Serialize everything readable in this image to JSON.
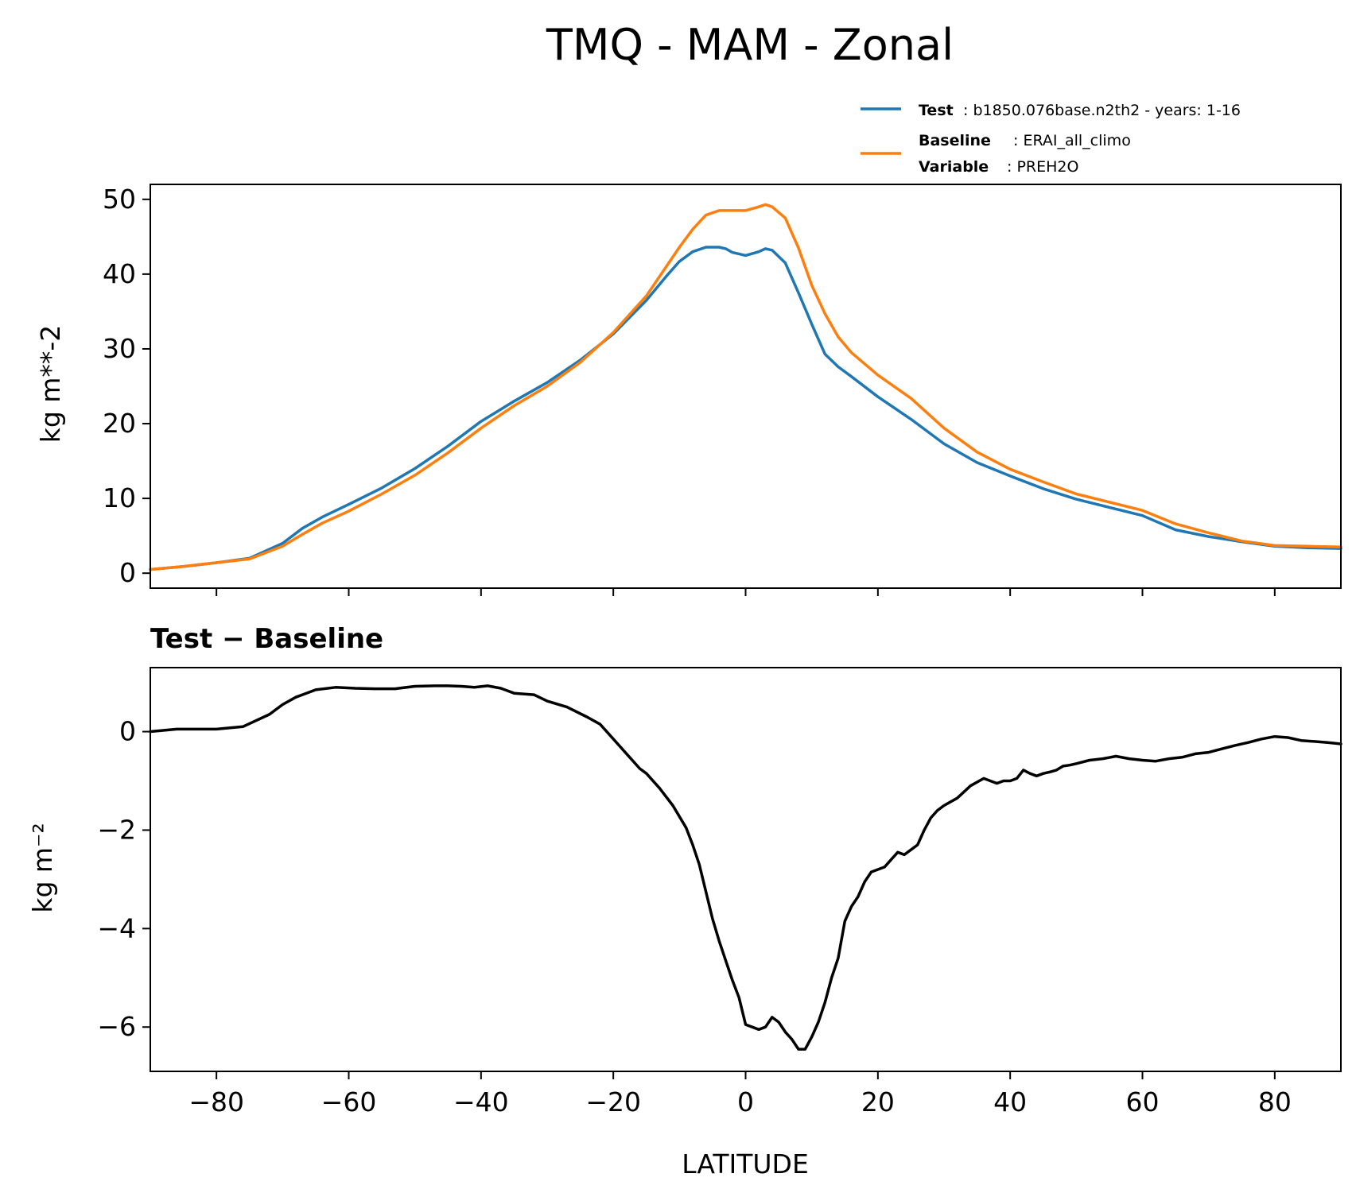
{
  "title": "TMQ - MAM - Zonal",
  "legend": {
    "test_key": "Test",
    "test_value": ": b1850.076base.n2th2 - years: 1-16",
    "baseline_key": "Baseline",
    "baseline_value": ": ERAI_all_climo",
    "variable_key": "Variable",
    "variable_value": ": PREH2O"
  },
  "colors": {
    "test": "#1f77b4",
    "baseline": "#ff7f0e",
    "diff": "#000000"
  },
  "chart_data": [
    {
      "type": "line",
      "ylabel": "kg m**-2",
      "xlim": [
        -90,
        90
      ],
      "ylim": [
        -2,
        52
      ],
      "yticks": [
        0,
        10,
        20,
        30,
        40,
        50
      ],
      "xticks": [
        -80,
        -60,
        -40,
        -20,
        0,
        20,
        40,
        60,
        80
      ],
      "show_x_ticklabels": false,
      "grid": false,
      "legend_position": "above top-right",
      "series": [
        {
          "name": "Test",
          "color": "#1f77b4",
          "x": [
            -90,
            -85,
            -80,
            -75,
            -70,
            -67,
            -64,
            -60,
            -55,
            -50,
            -45,
            -40,
            -35,
            -30,
            -25,
            -20,
            -15,
            -12,
            -10,
            -8,
            -6,
            -4,
            -3,
            -2,
            0,
            2,
            3,
            4,
            6,
            8,
            10,
            12,
            14,
            16,
            20,
            25,
            30,
            35,
            40,
            45,
            50,
            55,
            60,
            65,
            70,
            75,
            80,
            85,
            90
          ],
          "y": [
            0.5,
            0.9,
            1.4,
            2.0,
            4.0,
            6.0,
            7.5,
            9.2,
            11.4,
            14.0,
            17.0,
            20.3,
            23.0,
            25.5,
            28.5,
            32.0,
            36.5,
            39.7,
            41.7,
            43.0,
            43.6,
            43.6,
            43.4,
            42.9,
            42.5,
            43.0,
            43.4,
            43.2,
            41.5,
            37.5,
            33.3,
            29.3,
            27.6,
            26.3,
            23.6,
            20.6,
            17.3,
            14.8,
            13.0,
            11.3,
            9.9,
            8.8,
            7.7,
            5.8,
            4.9,
            4.2,
            3.6,
            3.4,
            3.3
          ]
        },
        {
          "name": "Baseline",
          "color": "#ff7f0e",
          "x": [
            -90,
            -85,
            -80,
            -75,
            -70,
            -67,
            -64,
            -60,
            -55,
            -50,
            -45,
            -40,
            -35,
            -30,
            -25,
            -20,
            -15,
            -12,
            -10,
            -8,
            -6,
            -4,
            -3,
            -2,
            0,
            2,
            3,
            4,
            6,
            8,
            10,
            12,
            14,
            16,
            20,
            25,
            30,
            35,
            40,
            45,
            50,
            55,
            60,
            65,
            70,
            75,
            80,
            85,
            90
          ],
          "y": [
            0.5,
            0.9,
            1.4,
            1.9,
            3.6,
            5.2,
            6.7,
            8.3,
            10.6,
            13.1,
            16.1,
            19.4,
            22.4,
            25.0,
            28.2,
            32.2,
            37.1,
            41.0,
            43.6,
            46.0,
            47.9,
            48.5,
            48.5,
            48.5,
            48.5,
            49.0,
            49.3,
            49.0,
            47.5,
            43.5,
            38.5,
            34.7,
            31.6,
            29.5,
            26.5,
            23.4,
            19.4,
            16.2,
            13.9,
            12.2,
            10.6,
            9.5,
            8.4,
            6.6,
            5.4,
            4.3,
            3.7,
            3.6,
            3.5
          ]
        }
      ]
    },
    {
      "type": "line",
      "title": "Test − Baseline",
      "xlabel": "LATITUDE",
      "ylabel": "kg m⁻²",
      "xlim": [
        -90,
        90
      ],
      "ylim": [
        -6.9,
        1.3
      ],
      "yticks": [
        0,
        -2,
        -4,
        -6
      ],
      "ytick_labels": [
        "0",
        "−2",
        "−4",
        "−6"
      ],
      "xticks": [
        -80,
        -60,
        -40,
        -20,
        0,
        20,
        40,
        60,
        80
      ],
      "xtick_labels": [
        "−80",
        "−60",
        "−40",
        "−20",
        "0",
        "20",
        "40",
        "60",
        "80"
      ],
      "grid": false,
      "series": [
        {
          "color": "#000000",
          "x": [
            -90,
            -86,
            -84,
            -82,
            -80,
            -76,
            -72,
            -70,
            -68,
            -65,
            -62,
            -59,
            -56,
            -53,
            -50,
            -47,
            -45,
            -43,
            -41,
            -39,
            -37,
            -35,
            -32,
            -30,
            -27,
            -24,
            -22,
            -20,
            -18,
            -16,
            -15,
            -13,
            -11,
            -9,
            -8,
            -7,
            -6,
            -5,
            -4,
            -3,
            -2,
            -1,
            0,
            1,
            2,
            3,
            4,
            5,
            6,
            7,
            8,
            9,
            10,
            11,
            12,
            13,
            14,
            15,
            16,
            17,
            18,
            19,
            20,
            21,
            22,
            23,
            24,
            25,
            26,
            27,
            28,
            29,
            30,
            32,
            34,
            36,
            37,
            38,
            39,
            40,
            41,
            42,
            43,
            44,
            45,
            46,
            47,
            48,
            49,
            50,
            52,
            54,
            56,
            58,
            60,
            62,
            64,
            66,
            68,
            70,
            72,
            74,
            76,
            78,
            80,
            82,
            84,
            86,
            88,
            90
          ],
          "y": [
            0.0,
            0.05,
            0.05,
            0.05,
            0.05,
            0.1,
            0.35,
            0.55,
            0.7,
            0.85,
            0.9,
            0.88,
            0.87,
            0.87,
            0.92,
            0.93,
            0.93,
            0.92,
            0.9,
            0.93,
            0.88,
            0.78,
            0.75,
            0.62,
            0.5,
            0.3,
            0.15,
            -0.15,
            -0.45,
            -0.75,
            -0.85,
            -1.15,
            -1.5,
            -1.95,
            -2.3,
            -2.7,
            -3.25,
            -3.8,
            -4.25,
            -4.65,
            -5.05,
            -5.4,
            -5.95,
            -6.0,
            -6.05,
            -6.0,
            -5.8,
            -5.9,
            -6.1,
            -6.25,
            -6.45,
            -6.45,
            -6.2,
            -5.9,
            -5.5,
            -5.0,
            -4.6,
            -3.85,
            -3.55,
            -3.35,
            -3.05,
            -2.85,
            -2.8,
            -2.75,
            -2.6,
            -2.45,
            -2.5,
            -2.4,
            -2.3,
            -2.0,
            -1.75,
            -1.6,
            -1.5,
            -1.35,
            -1.1,
            -0.95,
            -1.0,
            -1.05,
            -1.0,
            -1.0,
            -0.95,
            -0.78,
            -0.85,
            -0.9,
            -0.85,
            -0.82,
            -0.78,
            -0.7,
            -0.68,
            -0.65,
            -0.58,
            -0.55,
            -0.5,
            -0.55,
            -0.58,
            -0.6,
            -0.55,
            -0.52,
            -0.45,
            -0.42,
            -0.35,
            -0.28,
            -0.22,
            -0.15,
            -0.1,
            -0.12,
            -0.18,
            -0.2,
            -0.22,
            -0.25
          ]
        }
      ]
    }
  ]
}
